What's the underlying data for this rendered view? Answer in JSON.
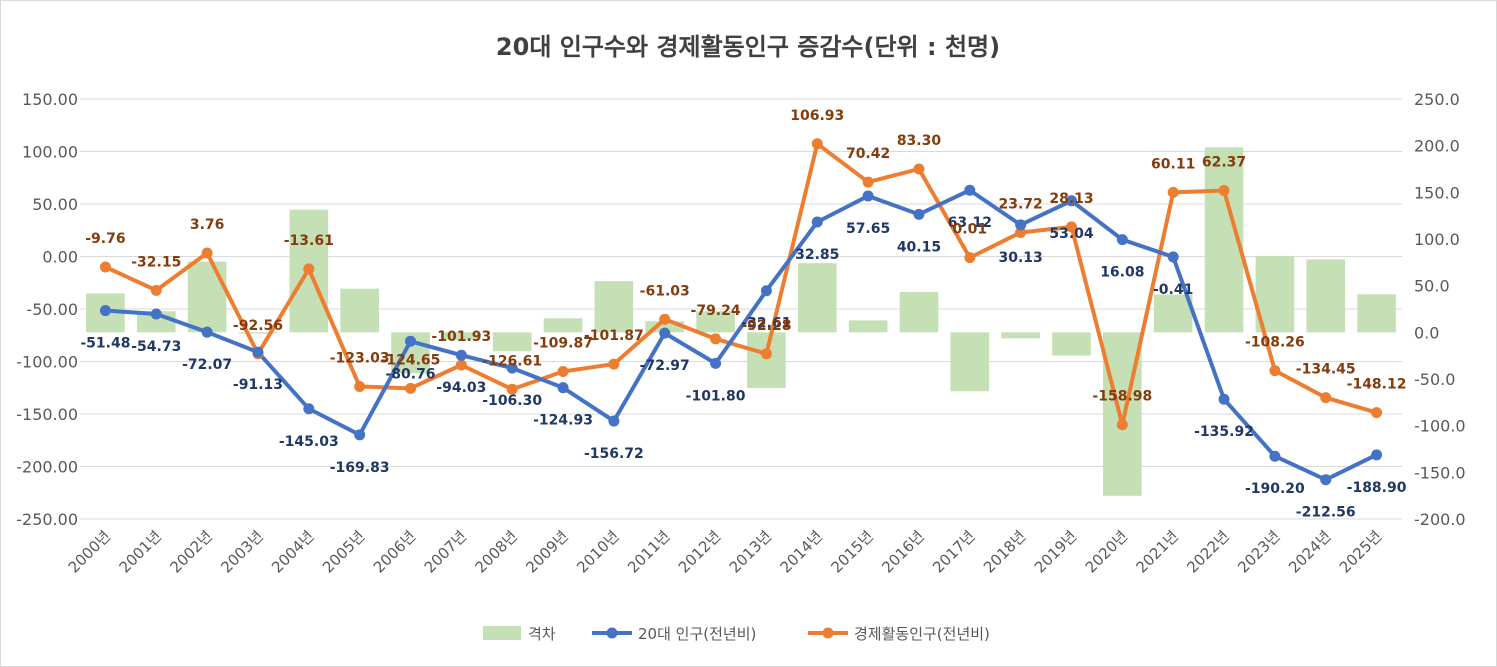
{
  "chart_data": {
    "type": "bar+line",
    "title": "20대 인구수와 경제활동인구 증감수(단위 : 천명)",
    "categories": [
      "2000년",
      "2001년",
      "2002년",
      "2003년",
      "2004년",
      "2005년",
      "2006년",
      "2007년",
      "2008년",
      "2009년",
      "2010년",
      "2011년",
      "2012년",
      "2013년",
      "2014년",
      "2015년",
      "2016년",
      "2017년",
      "2018년",
      "2019년",
      "2020년",
      "2021년",
      "2022년",
      "2023년",
      "2024년",
      "2025년"
    ],
    "left_axis": {
      "ylim": [
        -250,
        150
      ],
      "step": 50,
      "tick_labels": [
        "150.00",
        "100.00",
        "50.00",
        "0.00",
        "-50.00",
        "-100.00",
        "-150.00",
        "-200.00",
        "-250.00"
      ]
    },
    "right_axis": {
      "ylim": [
        -200,
        250
      ],
      "step": 50,
      "tick_labels": [
        "250.0",
        "200.0",
        "150.0",
        "100.0",
        "50.0",
        "0.0",
        "-50.0",
        "-100.0",
        "-150.0",
        "-200.0"
      ]
    },
    "series": [
      {
        "name": "격차",
        "type": "bar",
        "axis": "right",
        "color": "#c5e0b4",
        "values": [
          41.7,
          22.6,
          75.8,
          -1.4,
          131.4,
          46.8,
          -43.9,
          -7.9,
          -20.3,
          15.1,
          54.9,
          11.9,
          22.6,
          -59.7,
          74.1,
          12.8,
          43.2,
          -63.1,
          -6.4,
          -24.9,
          -175.1,
          40.5,
          198.3,
          81.9,
          78.1,
          40.8
        ]
      },
      {
        "name": "20대 인구(전년비)",
        "type": "line",
        "axis": "left",
        "color": "#4472c4",
        "values": [
          -51.48,
          -54.73,
          -72.07,
          -91.13,
          -145.03,
          -169.83,
          -80.76,
          -94.03,
          -106.3,
          -124.93,
          -156.72,
          -72.97,
          -101.8,
          -32.61,
          32.85,
          57.65,
          40.15,
          63.12,
          30.13,
          53.04,
          16.08,
          -0.41,
          -135.92,
          -190.2,
          -212.56,
          -188.9
        ],
        "labels": [
          "-51.48",
          "-54.73",
          "-72.07",
          "-91.13",
          "-145.03",
          "-169.83",
          "-80.76",
          "-94.03",
          "-106.30",
          "-124.93",
          "-156.72",
          "-72.97",
          "-101.80",
          "-32.61",
          "32.85",
          "57.65",
          "40.15",
          "63.12",
          "30.13",
          "53.04",
          "16.08",
          "-0.41",
          "-135.92",
          "-190.20",
          "-212.56",
          "-188.90"
        ]
      },
      {
        "name": "경제활동인구(전년비)",
        "type": "line",
        "axis": "right",
        "color": "#ed7d31",
        "values": [
          -9.76,
          -32.15,
          3.76,
          -92.56,
          -13.61,
          -123.03,
          -124.65,
          -101.93,
          -126.61,
          -109.87,
          -101.87,
          -61.03,
          -79.24,
          -92.28,
          106.93,
          70.42,
          83.3,
          0.01,
          23.72,
          28.13,
          -158.98,
          60.11,
          62.37,
          -108.26,
          -134.45,
          -148.12
        ],
        "labels": [
          "-9.76",
          "-32.15",
          "3.76",
          "-92.56",
          "-13.61",
          "-123.03",
          "-124.65",
          "-101.93",
          "-126.61",
          "-109.87",
          "-101.87",
          "-61.03",
          "-79.24",
          "-92.28",
          "106.93",
          "70.42",
          "83.30",
          "0.01",
          "23.72",
          "28.13",
          "-158.98",
          "60.11",
          "62.37",
          "-108.26",
          "-134.45",
          "-148.12"
        ],
        "plot_values": [
          70,
          45,
          85,
          -23,
          68,
          -58,
          -60,
          -35,
          -61,
          -42,
          -34,
          14,
          -7,
          -23,
          202,
          161,
          175,
          80,
          107,
          113,
          -99,
          150,
          152,
          -41,
          -70,
          -86
        ]
      }
    ],
    "grid": true,
    "legend_position": "bottom-center",
    "legend": [
      "격차",
      "20대 인구(전년비)",
      "경제활동인구(전년비)"
    ]
  }
}
